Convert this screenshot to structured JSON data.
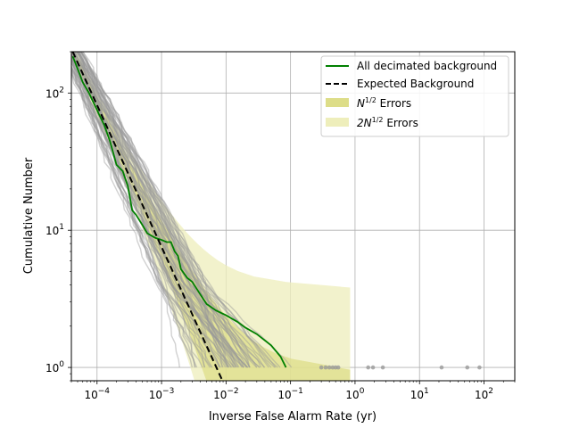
{
  "chart_data": {
    "type": "line",
    "x_scale": "log",
    "y_scale": "log",
    "xlabel": "Inverse False Alarm Rate (yr)",
    "ylabel": "Cumulative Number",
    "xlim": [
      4e-05,
      300
    ],
    "ylim": [
      0.8,
      200
    ],
    "grid": true,
    "legend_position": "top-right",
    "x_ticks": [
      {
        "value": 0.0001,
        "base": "10",
        "exp": "−4"
      },
      {
        "value": 0.001,
        "base": "10",
        "exp": "−3"
      },
      {
        "value": 0.01,
        "base": "10",
        "exp": "−2"
      },
      {
        "value": 0.1,
        "base": "10",
        "exp": "−1"
      },
      {
        "value": 1,
        "base": "10",
        "exp": "0"
      },
      {
        "value": 10,
        "base": "10",
        "exp": "1"
      },
      {
        "value": 100,
        "base": "10",
        "exp": "2"
      }
    ],
    "y_ticks": [
      {
        "value": 1,
        "base": "10",
        "exp": "0"
      },
      {
        "value": 10,
        "base": "10",
        "exp": "1"
      },
      {
        "value": 100,
        "base": "10",
        "exp": "2"
      }
    ],
    "colors": {
      "decimated": "#008000",
      "expected": "#000000",
      "background_trials": "#999999",
      "n_half_errors": "#dddd88",
      "two_n_half_errors": "#eeeebb"
    },
    "legend": [
      {
        "label": "All decimated background",
        "style": "green-line"
      },
      {
        "label": "Expected Background",
        "style": "black-dashed"
      },
      {
        "label_pre": "N",
        "label_sup": "1/2",
        "label_post": " Errors",
        "style": "n-half-band"
      },
      {
        "label_pre": "2N",
        "label_sup": "1/2",
        "label_post": " Errors",
        "style": "two-n-half-band"
      }
    ],
    "series": [
      {
        "name": "All decimated background",
        "style": "green-line",
        "x": [
          4.2e-05,
          5e-05,
          6e-05,
          7.5e-05,
          0.0001,
          0.00013,
          0.00016,
          0.0002,
          0.00025,
          0.0003,
          0.00035,
          0.0004,
          0.0005,
          0.0006,
          0.0008,
          0.001,
          0.0012,
          0.0014,
          0.0016,
          0.0018,
          0.002,
          0.0025,
          0.003,
          0.004,
          0.005,
          0.007,
          0.01,
          0.015,
          0.02,
          0.03,
          0.05,
          0.07,
          0.085
        ],
        "y": [
          185,
          150,
          120,
          100,
          75,
          58,
          44,
          30,
          27,
          21,
          14,
          13,
          11,
          9.5,
          8.8,
          8.5,
          8.2,
          8.2,
          7,
          6.5,
          5.2,
          4.5,
          4.2,
          3.4,
          2.9,
          2.6,
          2.4,
          2.15,
          1.95,
          1.75,
          1.45,
          1.2,
          1.0
        ]
      },
      {
        "name": "Expected Background",
        "style": "black-dashed",
        "x": [
          4.2e-05,
          0.0088
        ],
        "y": [
          200,
          0.8
        ]
      }
    ],
    "tail_points_x": [
      0.3,
      0.35,
      0.4,
      0.45,
      0.5,
      0.55,
      1.6,
      1.9,
      2.7,
      22,
      55,
      85
    ]
  }
}
